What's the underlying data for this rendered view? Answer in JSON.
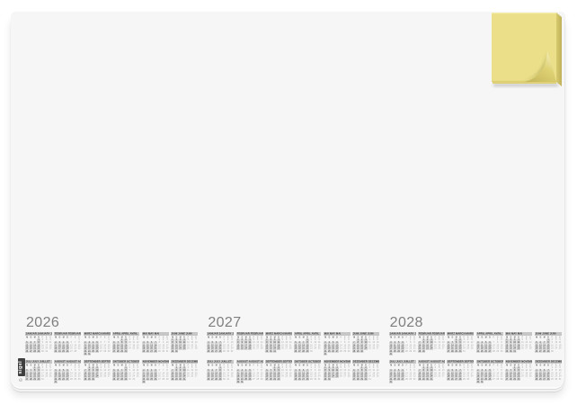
{
  "page": {
    "background": "#ffffff"
  },
  "desk_pad": {
    "surface_color": "#f6f6f6"
  },
  "sticky_note": {
    "face_color": "#ebe089",
    "side_color_light": "#d6c96e",
    "side_color_dark": "#bfb159",
    "curl_dark": "#c6b75c",
    "curl_light": "#f6efbf"
  },
  "brand": {
    "copyright": "©",
    "name": "sigel"
  },
  "calendar": {
    "year_color": "#7f7f7f",
    "month_header_bg": "#c6c6c6",
    "years": [
      "2026",
      "2027",
      "2028"
    ],
    "weekdays": [
      "M",
      "D",
      "M",
      "D",
      "F",
      "S",
      "S"
    ],
    "month_names": [
      "JANUAR JANUARY JANVIER",
      "FEBRUAR FEBRUARY FÉVRIER",
      "MÄRZ MARCH MARS",
      "APRIL APRIL AVRIL",
      "MAI MAY MAI",
      "JUNI JUNE JUIN",
      "JULI JULY JUILLET",
      "AUGUST AUGUST AOÛT",
      "SEPTEMBER SEPTEMBER SEPTEMBRE",
      "OKTOBER OCTOBER OCTOBRE",
      "NOVEMBER NOVEMBER NOVEMBRE",
      "DEZEMBER DECEMBER DÉCEMBRE"
    ]
  }
}
